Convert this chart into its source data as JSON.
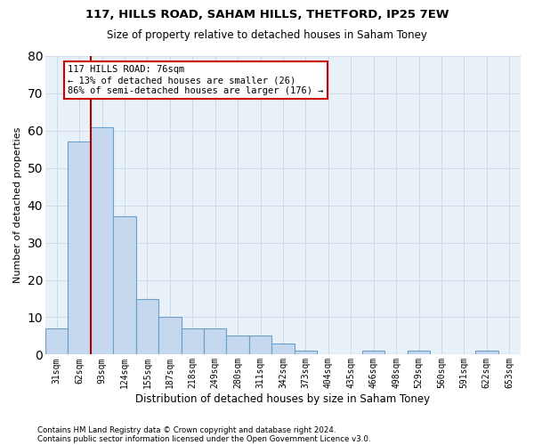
{
  "title1": "117, HILLS ROAD, SAHAM HILLS, THETFORD, IP25 7EW",
  "title2": "Size of property relative to detached houses in Saham Toney",
  "xlabel": "Distribution of detached houses by size in Saham Toney",
  "ylabel": "Number of detached properties",
  "categories": [
    "31sqm",
    "62sqm",
    "93sqm",
    "124sqm",
    "155sqm",
    "187sqm",
    "218sqm",
    "249sqm",
    "280sqm",
    "311sqm",
    "342sqm",
    "373sqm",
    "404sqm",
    "435sqm",
    "466sqm",
    "498sqm",
    "529sqm",
    "560sqm",
    "591sqm",
    "622sqm",
    "653sqm"
  ],
  "values": [
    7,
    57,
    61,
    37,
    15,
    10,
    7,
    7,
    5,
    5,
    3,
    1,
    0,
    0,
    1,
    0,
    1,
    0,
    0,
    1,
    0
  ],
  "bar_color": "#c5d8ee",
  "bar_edge_color": "#6aa0c8",
  "vline_x": 1.5,
  "vline_color": "#aa0000",
  "ylim": [
    0,
    80
  ],
  "yticks": [
    0,
    10,
    20,
    30,
    40,
    50,
    60,
    70,
    80
  ],
  "annotation_line1": "117 HILLS ROAD: 76sqm",
  "annotation_line2": "← 13% of detached houses are smaller (26)",
  "annotation_line3": "86% of semi-detached houses are larger (176) →",
  "annotation_box_color": "#ffffff",
  "annotation_box_edge": "#cc0000",
  "footer1": "Contains HM Land Registry data © Crown copyright and database right 2024.",
  "footer2": "Contains public sector information licensed under the Open Government Licence v3.0.",
  "background_color": "#ffffff",
  "plot_bg_color": "#e8f0f8",
  "grid_color": "#c8d8e8"
}
